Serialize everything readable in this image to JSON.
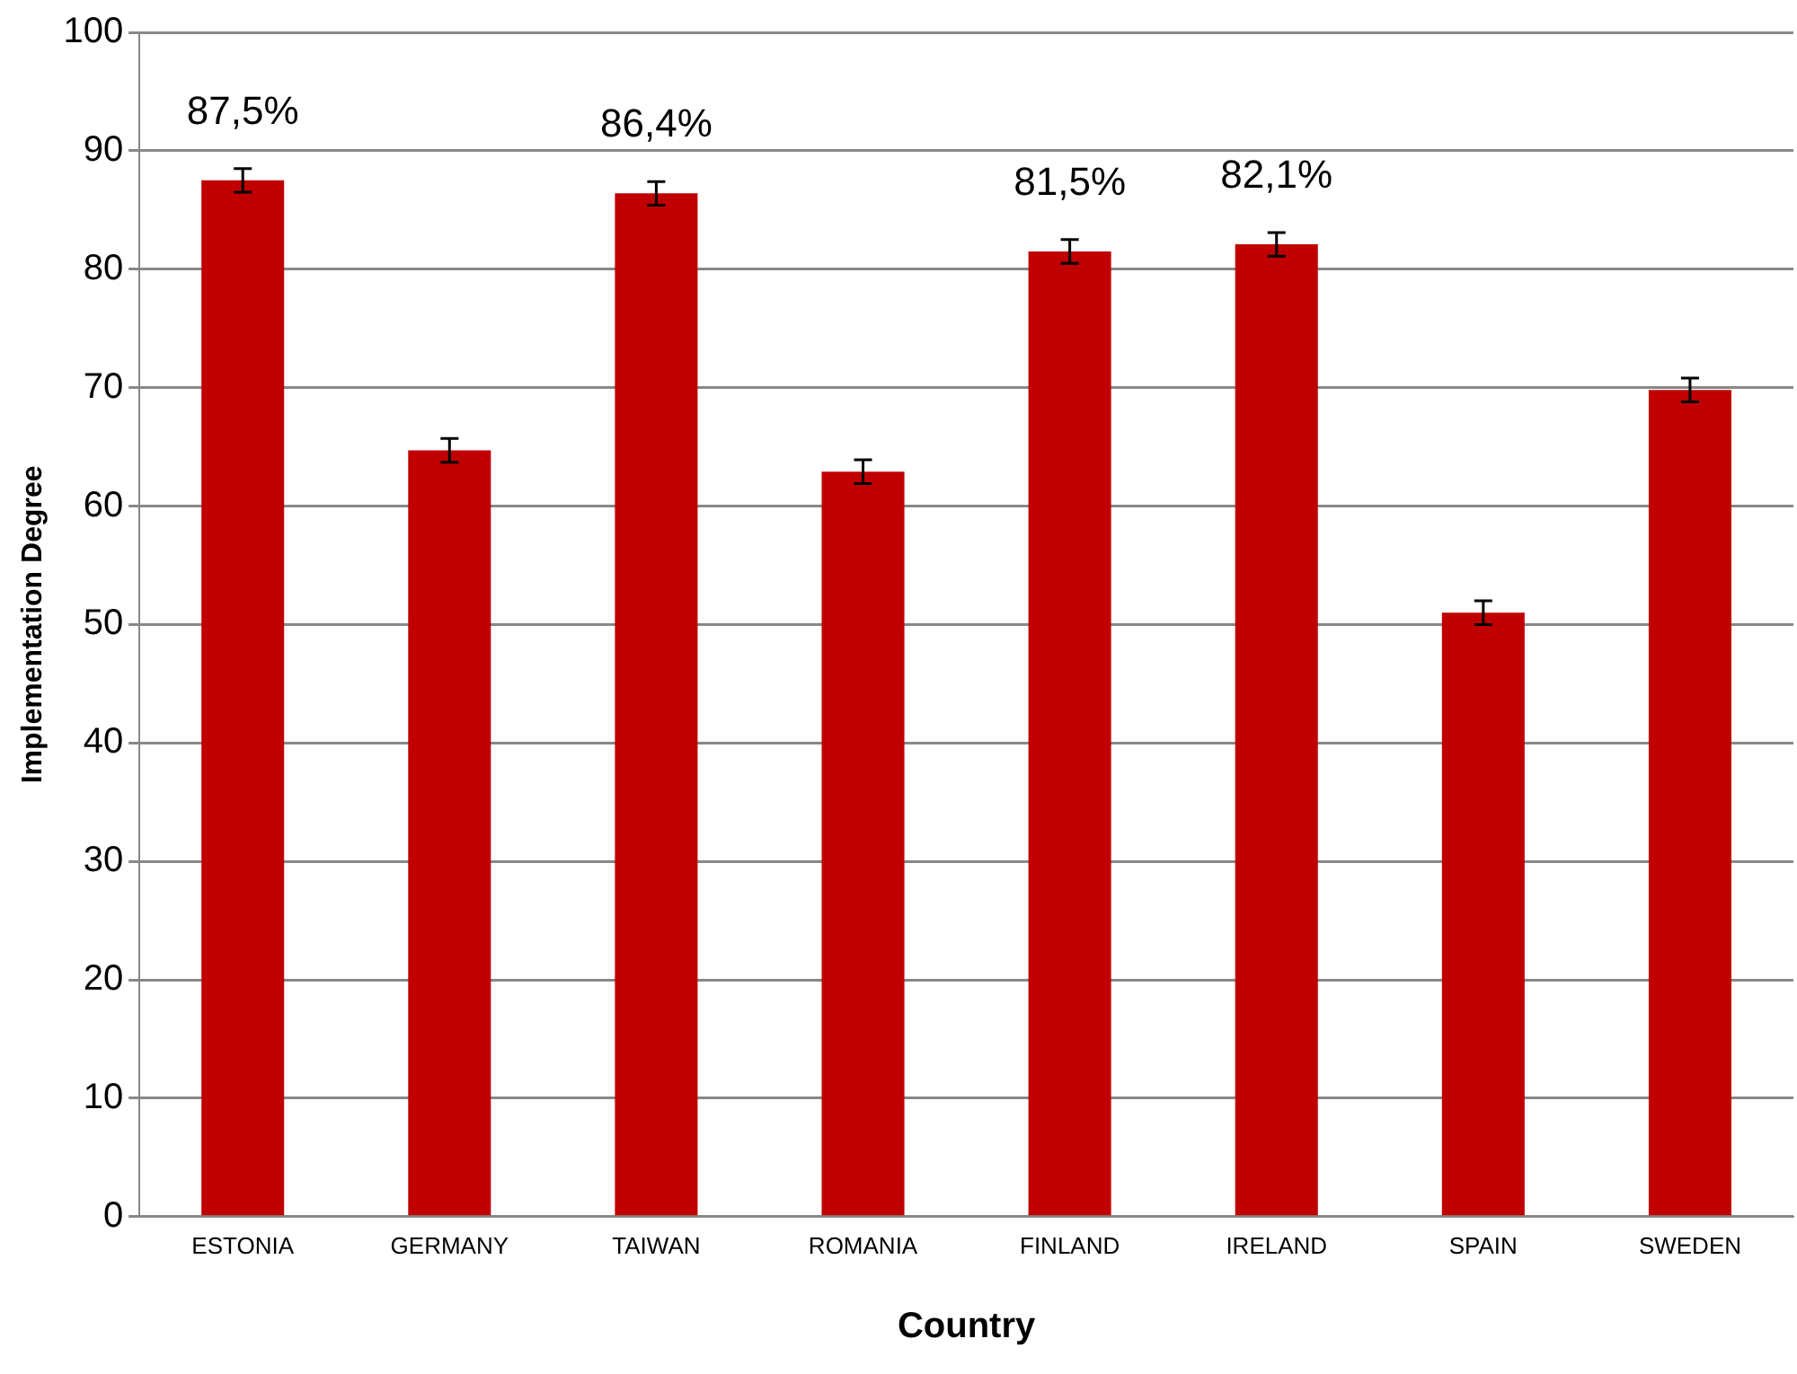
{
  "chart_data": {
    "type": "bar",
    "xlabel": "Country",
    "ylabel": "Implementation Degree",
    "categories": [
      "ESTONIA",
      "GERMANY",
      "TAIWAN",
      "ROMANIA",
      "FINLAND",
      "IRELAND",
      "SPAIN",
      "SWEDEN"
    ],
    "values": [
      87.5,
      64.7,
      86.4,
      62.9,
      81.5,
      82.1,
      51,
      69.8
    ],
    "errors": [
      1,
      1,
      1,
      1,
      1,
      1,
      1,
      1
    ],
    "value_labels": [
      "87,5%",
      null,
      "86,4%",
      null,
      "81,5%",
      "82,1%",
      null,
      null
    ],
    "color": "#c00000",
    "ylim": [
      0,
      100
    ],
    "yticks": [
      0,
      10,
      20,
      30,
      40,
      50,
      60,
      70,
      80,
      90,
      100
    ],
    "grid": "y",
    "legend": false
  }
}
